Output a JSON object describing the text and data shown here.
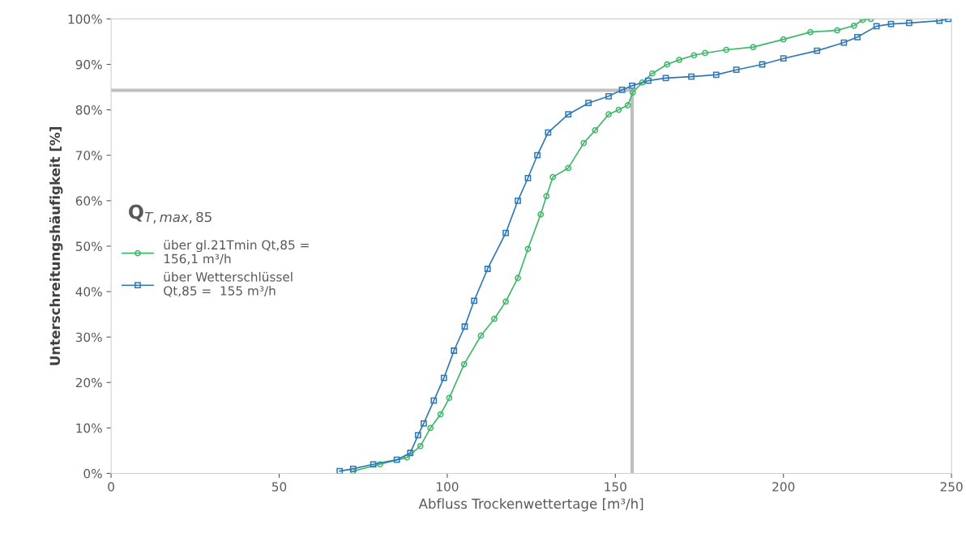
{
  "chart_data": {
    "type": "line",
    "xlabel": "Abfluss Trockenwettertage [m³/h]",
    "ylabel": "Unterschreitungshäufigkeit [%]",
    "annotations": [
      "Q$_{T,max,85}$"
    ],
    "xlim": [
      0,
      250
    ],
    "xticks": [
      0,
      50,
      100,
      150,
      200,
      250
    ],
    "ylim": [
      0,
      100
    ],
    "yticks": [
      {
        "value": 0,
        "label": "0%"
      },
      {
        "value": 10,
        "label": "10%"
      },
      {
        "value": 20,
        "label": "20%"
      },
      {
        "value": 30,
        "label": "30%"
      },
      {
        "value": 40,
        "label": "40%"
      },
      {
        "value": 50,
        "label": "50%"
      },
      {
        "value": 60,
        "label": "60%"
      },
      {
        "value": 70,
        "label": "70%"
      },
      {
        "value": 80,
        "label": "80%"
      },
      {
        "value": 90,
        "label": "90%"
      },
      {
        "value": 100,
        "label": "100%"
      }
    ],
    "grid": false,
    "legend": "left",
    "series": [
      {
        "name": "über gl.21Tmin Qt,85 =\n156,1 m³/h",
        "color": "#3cb868",
        "marker": "circle",
        "x": [
          72,
          80,
          88,
          92,
          95,
          98,
          100.6,
          105,
          110,
          114,
          117.4,
          121,
          124,
          127.8,
          129.5,
          131.4,
          136,
          140.6,
          144,
          148,
          151,
          153.7,
          155.2,
          158,
          161,
          165.4,
          169,
          173.4,
          176.7,
          183,
          191,
          200,
          208,
          216,
          221,
          223.6,
          226
        ],
        "values": [
          0.5,
          2,
          3.5,
          6,
          10,
          13,
          16.6,
          24,
          30.3,
          34,
          37.8,
          43,
          49.4,
          57,
          61,
          65.2,
          67.2,
          72.7,
          75.5,
          79,
          80,
          81,
          83.8,
          86,
          88,
          90,
          91,
          92,
          92.5,
          93.2,
          93.8,
          95.5,
          97.1,
          97.5,
          98.5,
          99.8,
          100
        ]
      },
      {
        "name": "über Wetterschlüssel\nQt,85 =  155 m³/h",
        "color": "#2e78b5",
        "marker": "square",
        "x": [
          68,
          72,
          78,
          85,
          89,
          91.3,
          93,
          96,
          99,
          102,
          105.2,
          108,
          112,
          117.4,
          121,
          124,
          126.8,
          130,
          136,
          142,
          148,
          152,
          155,
          159.8,
          165,
          172.6,
          180,
          186,
          193.7,
          200,
          210,
          218,
          222,
          227.7,
          232,
          237.4,
          246.4,
          249
        ],
        "values": [
          0.5,
          1,
          2,
          3,
          4.5,
          8.4,
          11,
          16,
          21,
          27,
          32.3,
          38,
          45,
          52.9,
          60,
          65,
          70,
          75,
          79,
          81.5,
          83,
          84.4,
          85.3,
          86.4,
          87,
          87.3,
          87.7,
          88.8,
          90,
          91.3,
          93,
          94.8,
          96,
          98.4,
          98.9,
          99.1,
          99.6,
          100
        ]
      },
      {
        "color": "#bfbfbf",
        "marker": "none",
        "x": [
          0,
          155,
          155
        ],
        "values": [
          84.3,
          84.3,
          0
        ]
      }
    ]
  }
}
